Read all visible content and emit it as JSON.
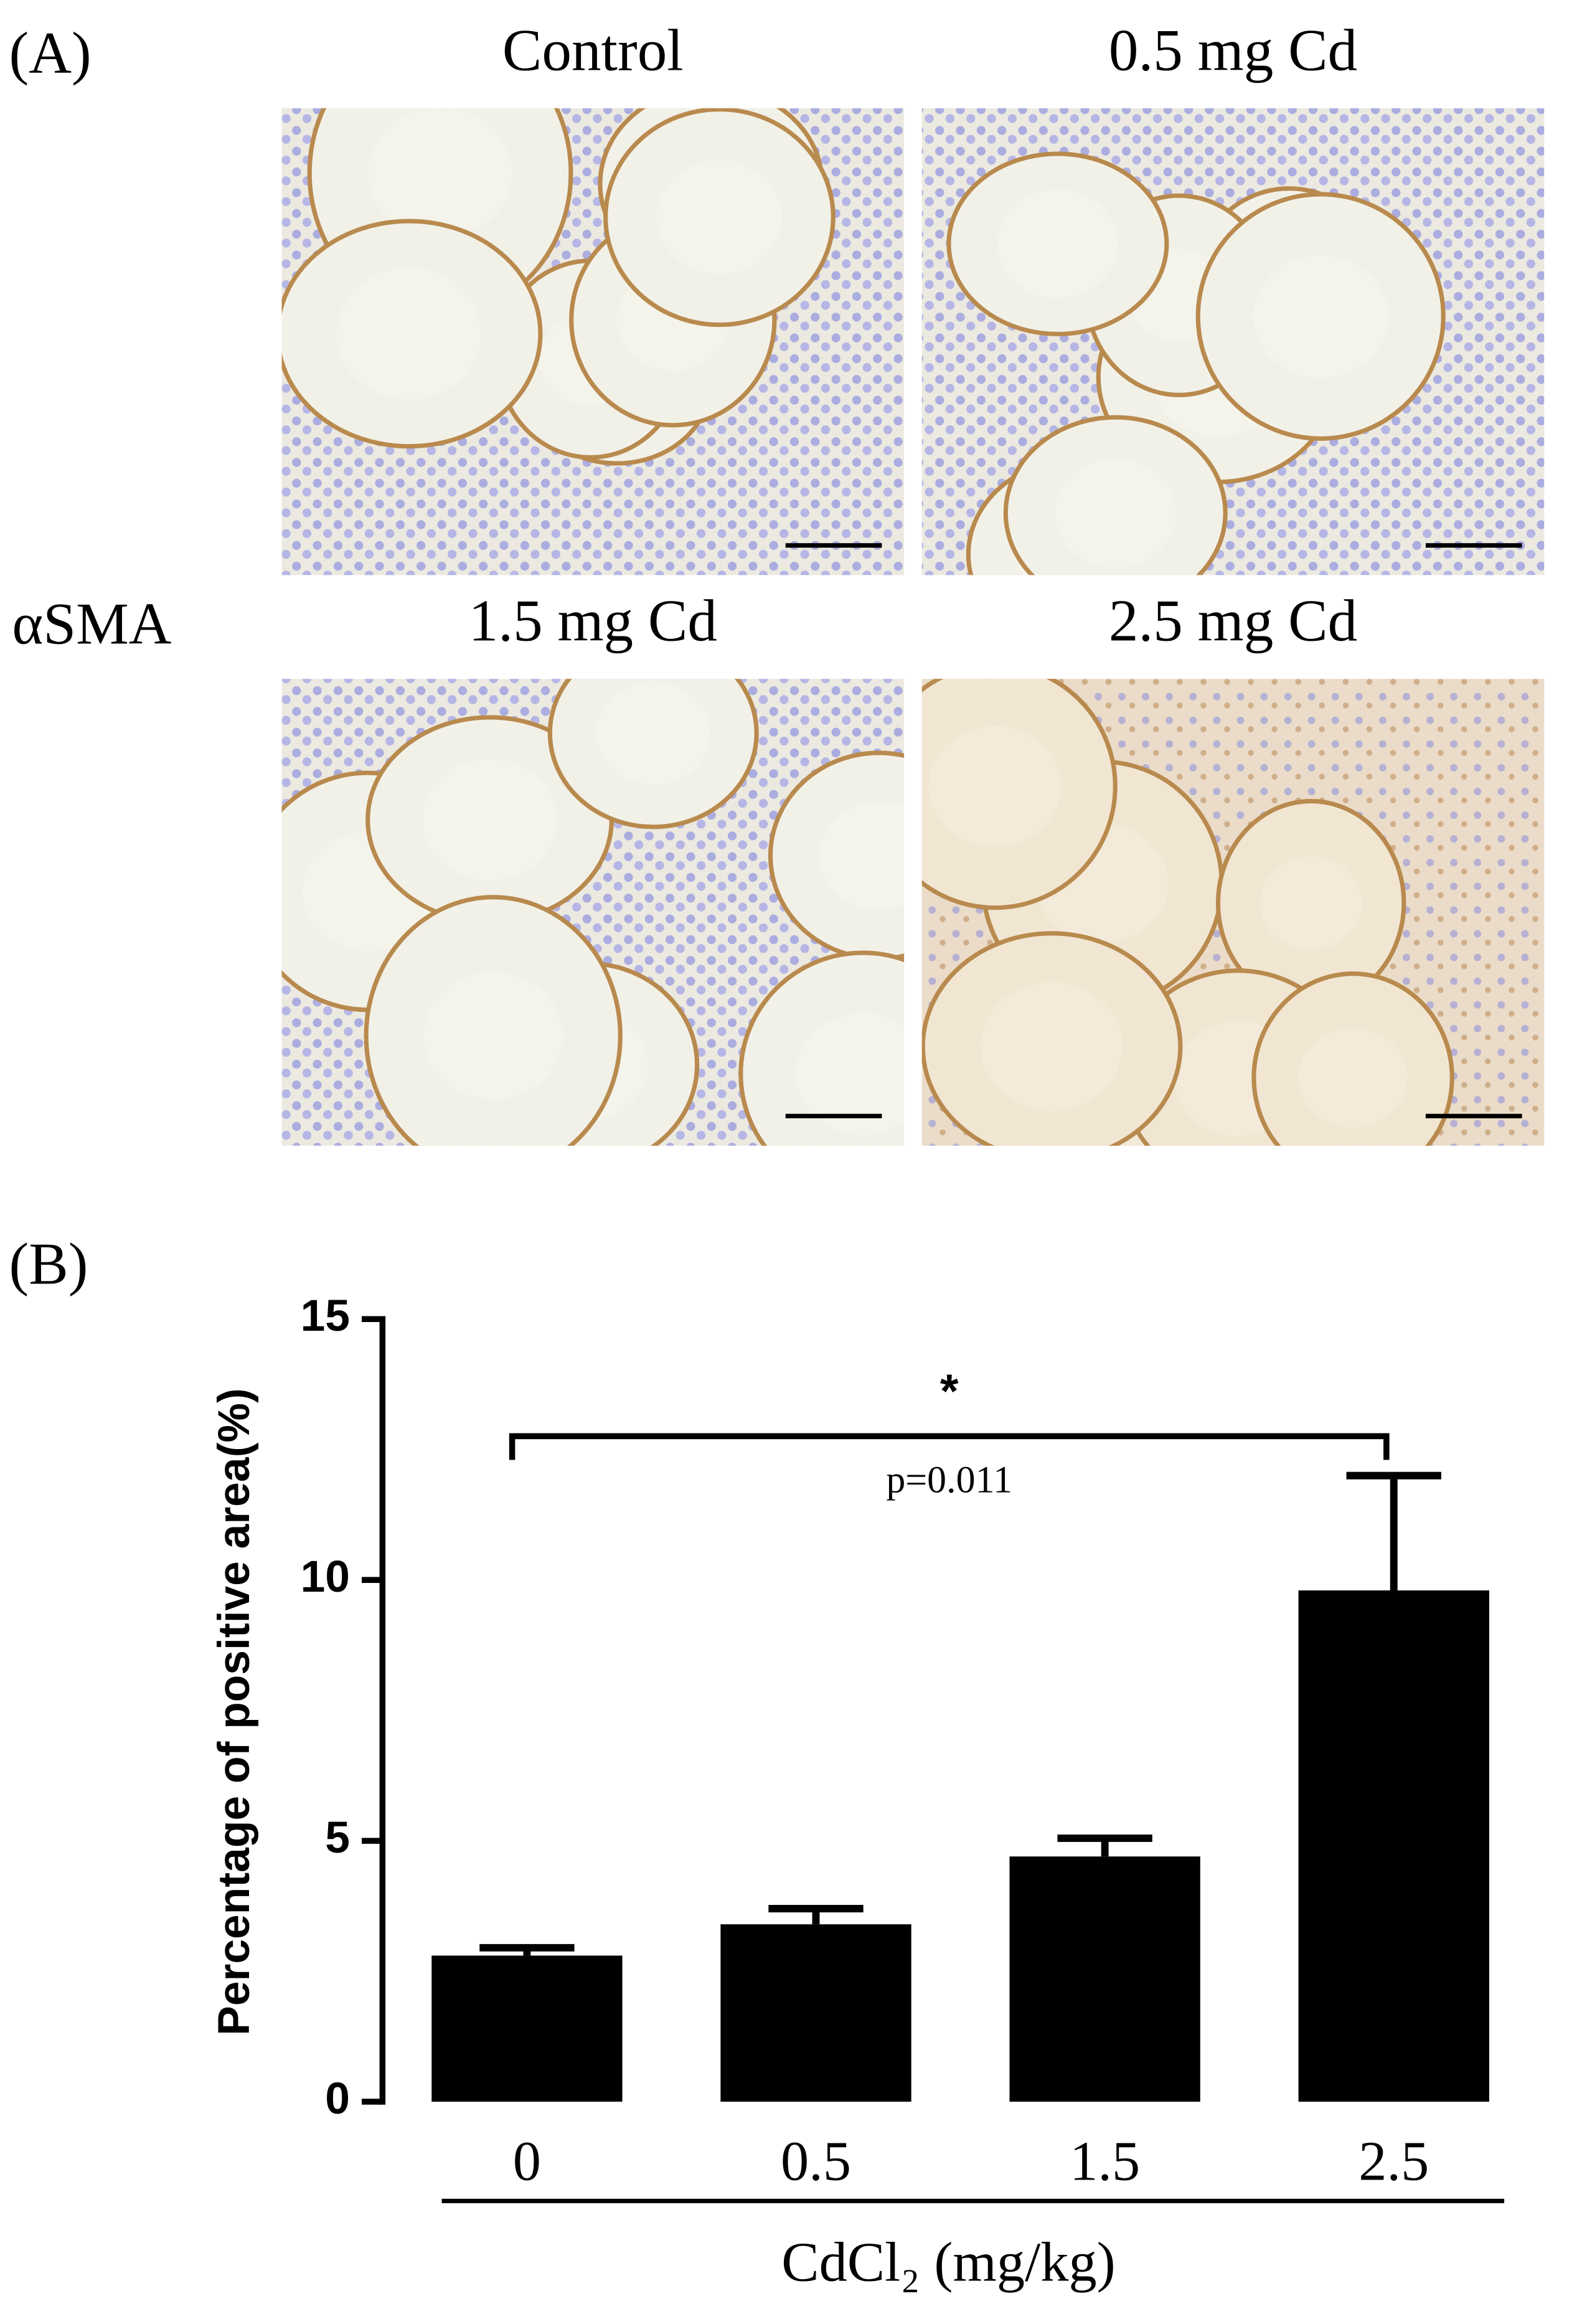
{
  "panel_a": {
    "label": "(A)",
    "row_label": "αSMA",
    "images": [
      "Control",
      "0.5 mg Cd",
      "1.5 mg Cd",
      "2.5 mg Cd"
    ]
  },
  "chart_data": {
    "type": "bar",
    "panel_label": "(B)",
    "y_label": "Percentage of positive area(%)",
    "x_label": "CdCl₂ (mg/kg)",
    "categories": [
      "0",
      "0.5",
      "1.5",
      "2.5"
    ],
    "values": [
      2.8,
      3.4,
      4.7,
      9.8
    ],
    "errors": [
      0.15,
      0.3,
      0.35,
      2.2
    ],
    "color": "#000000",
    "ylim": [
      0,
      15
    ],
    "yticks": [
      0,
      5,
      10,
      15
    ],
    "annotation": {
      "star": "*",
      "text": "p=0.011"
    }
  }
}
